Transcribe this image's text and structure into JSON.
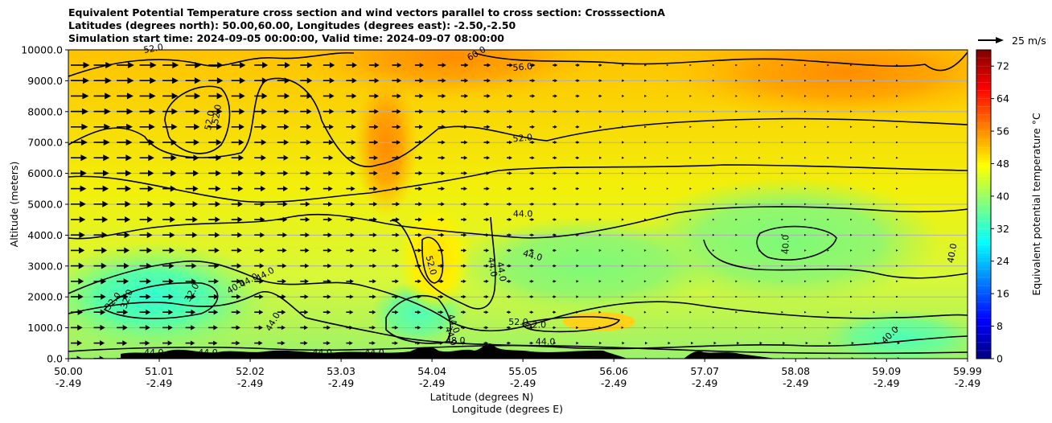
{
  "chart_data": {
    "type": "heatmap",
    "title": [
      "Equivalent Potential Temperature cross section and wind vectors parallel to cross section: CrosssectionA",
      "Latitudes (degrees north): 50.00,60.00, Longitudes (degrees east): -2.50,-2.50",
      "Simulation start time: 2024-09-05 00:00:00, Valid time: 2024-09-07 08:00:00"
    ],
    "xlabel": "Latitude (degrees N)",
    "xlabel2": "Longitude (degrees E)",
    "ylabel": "Altitude (meters)",
    "colorbar_label": "Equivalent potential temperature °C",
    "x_range": [
      50.0,
      59.99
    ],
    "y_range": [
      0,
      10000
    ],
    "grid": "horizontal",
    "x_ticks": [
      {
        "lat": "50.00",
        "lon": "-2.49",
        "value": 50.0
      },
      {
        "lat": "51.01",
        "lon": "-2.49",
        "value": 51.01
      },
      {
        "lat": "52.02",
        "lon": "-2.49",
        "value": 52.02
      },
      {
        "lat": "53.03",
        "lon": "-2.49",
        "value": 53.03
      },
      {
        "lat": "54.04",
        "lon": "-2.49",
        "value": 54.04
      },
      {
        "lat": "55.05",
        "lon": "-2.49",
        "value": 55.05
      },
      {
        "lat": "56.06",
        "lon": "-2.49",
        "value": 56.06
      },
      {
        "lat": "57.07",
        "lon": "-2.49",
        "value": 57.07
      },
      {
        "lat": "58.08",
        "lon": "-2.49",
        "value": 58.08
      },
      {
        "lat": "59.09",
        "lon": "-2.49",
        "value": 59.09
      },
      {
        "lat": "59.99",
        "lon": "-2.49",
        "value": 59.99
      }
    ],
    "y_ticks": [
      {
        "label": "0.0",
        "value": 0
      },
      {
        "label": "1000.0",
        "value": 1000
      },
      {
        "label": "2000.0",
        "value": 2000
      },
      {
        "label": "3000.0",
        "value": 3000
      },
      {
        "label": "4000.0",
        "value": 4000
      },
      {
        "label": "5000.0",
        "value": 5000
      },
      {
        "label": "6000.0",
        "value": 6000
      },
      {
        "label": "7000.0",
        "value": 7000
      },
      {
        "label": "8000.0",
        "value": 8000
      },
      {
        "label": "9000.0",
        "value": 9000
      },
      {
        "label": "10000.0",
        "value": 10000
      }
    ],
    "colorbar_range": [
      0,
      76
    ],
    "colorbar_ticks": [
      {
        "label": "0",
        "value": 0
      },
      {
        "label": "8",
        "value": 8
      },
      {
        "label": "16",
        "value": 16
      },
      {
        "label": "24",
        "value": 24
      },
      {
        "label": "32",
        "value": 32
      },
      {
        "label": "40",
        "value": 40
      },
      {
        "label": "48",
        "value": 48
      },
      {
        "label": "56",
        "value": 56
      },
      {
        "label": "64",
        "value": 64
      },
      {
        "label": "72",
        "value": 72
      }
    ],
    "quiver_key": {
      "label": "25 m/s",
      "speed": 25
    },
    "contour_labels": [
      {
        "text": "52.0",
        "lat": 50.95,
        "alt": 9950,
        "angle": -10
      },
      {
        "text": "60.0",
        "lat": 54.55,
        "alt": 9800,
        "angle": -30
      },
      {
        "text": "56.0",
        "lat": 55.05,
        "alt": 9350,
        "angle": -5
      },
      {
        "text": "52.0",
        "lat": 51.68,
        "alt": 7900,
        "angle": -80
      },
      {
        "text": "52.0",
        "lat": 51.6,
        "alt": 7700,
        "angle": -80
      },
      {
        "text": "52.0",
        "lat": 55.05,
        "alt": 7050,
        "angle": -5
      },
      {
        "text": "44.0",
        "lat": 55.05,
        "alt": 4600,
        "angle": 0
      },
      {
        "text": "44.0",
        "lat": 55.15,
        "alt": 3250,
        "angle": 15
      },
      {
        "text": "44.0",
        "lat": 54.68,
        "alt": 2950,
        "angle": 80
      },
      {
        "text": "44.0",
        "lat": 54.78,
        "alt": 2800,
        "angle": 80
      },
      {
        "text": "52.0",
        "lat": 54.0,
        "alt": 3000,
        "angle": 75
      },
      {
        "text": "44.0",
        "lat": 52.2,
        "alt": 2650,
        "angle": -30
      },
      {
        "text": "44.0",
        "lat": 52.02,
        "alt": 2450,
        "angle": -30
      },
      {
        "text": "40.0",
        "lat": 51.88,
        "alt": 2250,
        "angle": -30
      },
      {
        "text": "32.0",
        "lat": 51.4,
        "alt": 2100,
        "angle": -60
      },
      {
        "text": "32.0",
        "lat": 50.68,
        "alt": 1900,
        "angle": -70
      },
      {
        "text": "32.0",
        "lat": 50.52,
        "alt": 1800,
        "angle": -50
      },
      {
        "text": "44.0",
        "lat": 52.3,
        "alt": 1150,
        "angle": -60
      },
      {
        "text": "44.0",
        "lat": 54.25,
        "alt": 1100,
        "angle": 70
      },
      {
        "text": "44.0",
        "lat": 54.22,
        "alt": 700,
        "angle": 70
      },
      {
        "text": "48.0",
        "lat": 54.3,
        "alt": 500,
        "angle": 0
      },
      {
        "text": "52.0",
        "lat": 55.0,
        "alt": 1100,
        "angle": 0
      },
      {
        "text": "52.0",
        "lat": 55.2,
        "alt": 1000,
        "angle": 0
      },
      {
        "text": "44.0",
        "lat": 55.3,
        "alt": 450,
        "angle": 0
      },
      {
        "text": "40.0",
        "lat": 58.0,
        "alt": 3700,
        "angle": -90
      },
      {
        "text": "40.0",
        "lat": 59.85,
        "alt": 3400,
        "angle": -80
      },
      {
        "text": "40.0",
        "lat": 59.15,
        "alt": 700,
        "angle": -45
      },
      {
        "text": "44.0",
        "lat": 50.95,
        "alt": 100,
        "angle": 0
      },
      {
        "text": "44.0",
        "lat": 51.55,
        "alt": 100,
        "angle": 0
      },
      {
        "text": "44.0",
        "lat": 52.82,
        "alt": 100,
        "angle": 0
      },
      {
        "text": "44.0",
        "lat": 53.4,
        "alt": 100,
        "angle": 0
      }
    ],
    "style": {
      "cmap_stops": [
        "#00007f",
        "#0000ff",
        "#007fff",
        "#00ffff",
        "#7fff7f",
        "#ffff00",
        "#ff7f00",
        "#ff0000",
        "#7f0000"
      ],
      "contour_color": "#000000",
      "terrain_color": "#000000",
      "grid_color": "#b0b0b0"
    }
  }
}
